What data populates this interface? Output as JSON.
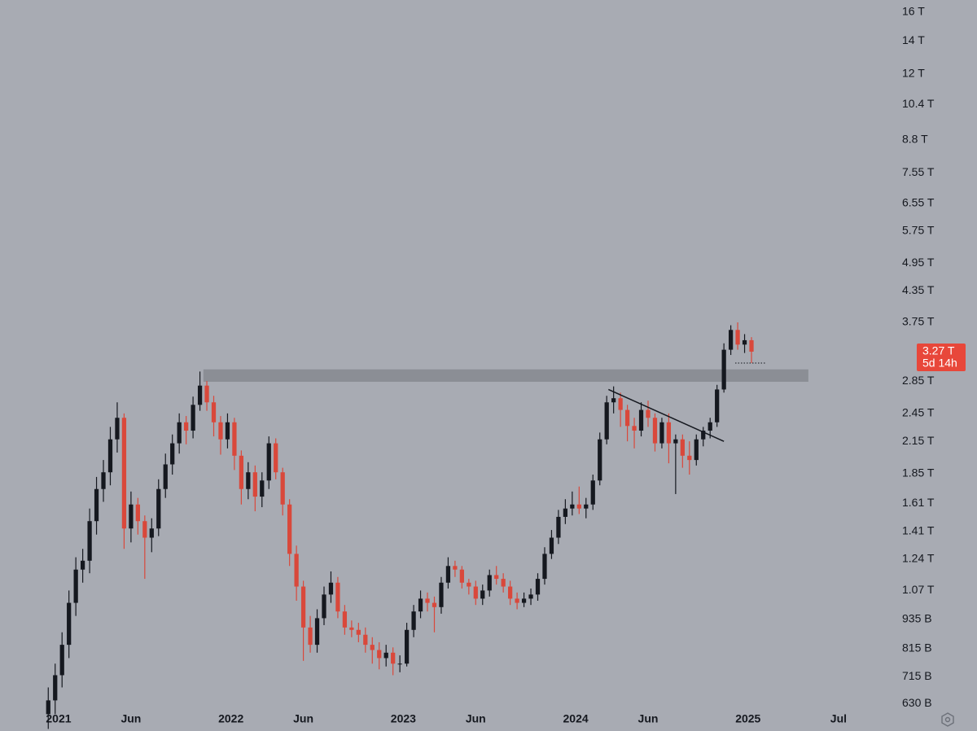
{
  "chart_data": {
    "type": "candlestick",
    "log_scale": true,
    "up_color": "#15181f",
    "down_color": "#d9483b",
    "x": [
      2020.94,
      2020.98,
      2021.02,
      2021.06,
      2021.1,
      2021.14,
      2021.18,
      2021.22,
      2021.26,
      2021.3,
      2021.34,
      2021.38,
      2021.42,
      2021.46,
      2021.5,
      2021.54,
      2021.58,
      2021.62,
      2021.66,
      2021.7,
      2021.74,
      2021.78,
      2021.82,
      2021.86,
      2021.9,
      2021.94,
      2021.98,
      2022.02,
      2022.06,
      2022.1,
      2022.14,
      2022.18,
      2022.22,
      2022.26,
      2022.3,
      2022.34,
      2022.38,
      2022.42,
      2022.46,
      2022.5,
      2022.54,
      2022.58,
      2022.62,
      2022.66,
      2022.7,
      2022.74,
      2022.78,
      2022.82,
      2022.86,
      2022.9,
      2022.94,
      2022.98,
      2023.02,
      2023.06,
      2023.1,
      2023.14,
      2023.18,
      2023.22,
      2023.26,
      2023.3,
      2023.34,
      2023.38,
      2023.42,
      2023.46,
      2023.5,
      2023.54,
      2023.58,
      2023.62,
      2023.66,
      2023.7,
      2023.74,
      2023.78,
      2023.82,
      2023.86,
      2023.9,
      2023.94,
      2023.98,
      2024.02,
      2024.06,
      2024.1,
      2024.14,
      2024.18,
      2024.22,
      2024.26,
      2024.3,
      2024.34,
      2024.38,
      2024.42,
      2024.46,
      2024.5,
      2024.54,
      2024.58,
      2024.62,
      2024.66,
      2024.7,
      2024.74,
      2024.78,
      2024.82,
      2024.86,
      2024.9,
      2024.94,
      2024.98,
      2025.02
    ],
    "open": [
      0.6,
      0.64,
      0.72,
      0.83,
      1.01,
      1.18,
      1.23,
      1.48,
      1.72,
      1.86,
      2.17,
      2.4,
      1.43,
      1.6,
      1.48,
      1.37,
      1.43,
      1.72,
      1.93,
      2.13,
      2.35,
      2.26,
      2.55,
      2.79,
      2.58,
      2.35,
      2.17,
      2.35,
      2.01,
      1.72,
      1.86,
      1.66,
      1.79,
      2.13,
      1.86,
      1.6,
      1.27,
      1.09,
      0.9,
      0.83,
      0.94,
      1.05,
      1.11,
      0.97,
      0.9,
      0.89,
      0.87,
      0.83,
      0.81,
      0.78,
      0.8,
      0.76,
      0.76,
      0.89,
      0.97,
      1.03,
      1.01,
      0.99,
      1.11,
      1.2,
      1.18,
      1.11,
      1.09,
      1.03,
      1.07,
      1.15,
      1.13,
      1.09,
      1.03,
      1.01,
      1.03,
      1.05,
      1.13,
      1.27,
      1.37,
      1.51,
      1.57,
      1.6,
      1.57,
      1.6,
      1.79,
      2.17,
      2.58,
      2.63,
      2.49,
      2.31,
      2.26,
      2.49,
      2.4,
      2.13,
      2.35,
      2.13,
      2.17,
      2.01,
      1.97,
      2.17,
      2.26,
      2.35,
      2.74,
      3.3,
      3.62,
      3.38,
      3.45
    ],
    "high": [
      0.68,
      0.76,
      0.88,
      1.07,
      1.25,
      1.3,
      1.57,
      1.82,
      1.97,
      2.3,
      2.58,
      2.45,
      1.7,
      1.65,
      1.52,
      1.5,
      1.8,
      2.03,
      2.22,
      2.45,
      2.42,
      2.65,
      2.98,
      2.85,
      2.66,
      2.42,
      2.45,
      2.4,
      2.06,
      1.95,
      1.92,
      1.86,
      2.2,
      2.18,
      1.9,
      1.64,
      1.32,
      1.12,
      0.95,
      0.98,
      1.09,
      1.17,
      1.14,
      1.0,
      0.93,
      0.92,
      0.9,
      0.86,
      0.84,
      0.83,
      0.82,
      0.79,
      0.92,
      1.0,
      1.07,
      1.06,
      1.04,
      1.14,
      1.25,
      1.23,
      1.2,
      1.13,
      1.12,
      1.1,
      1.18,
      1.2,
      1.16,
      1.12,
      1.06,
      1.06,
      1.08,
      1.16,
      1.31,
      1.42,
      1.56,
      1.64,
      1.7,
      1.74,
      1.65,
      1.84,
      2.24,
      2.66,
      2.78,
      2.7,
      2.55,
      2.4,
      2.58,
      2.6,
      2.45,
      2.4,
      2.45,
      2.22,
      2.22,
      2.15,
      2.22,
      2.3,
      2.4,
      2.8,
      3.4,
      3.7,
      3.75,
      3.55,
      3.5
    ],
    "low": [
      0.56,
      0.6,
      0.68,
      0.78,
      0.95,
      1.11,
      1.16,
      1.39,
      1.62,
      1.75,
      2.04,
      1.3,
      1.34,
      1.39,
      1.13,
      1.28,
      1.38,
      1.65,
      1.84,
      2.03,
      2.12,
      2.18,
      2.48,
      2.48,
      2.2,
      2.02,
      2.08,
      1.88,
      1.6,
      1.64,
      1.55,
      1.58,
      1.72,
      1.8,
      1.52,
      1.2,
      1.02,
      0.77,
      0.8,
      0.8,
      0.91,
      1.01,
      0.94,
      0.87,
      0.86,
      0.84,
      0.8,
      0.76,
      0.74,
      0.75,
      0.72,
      0.73,
      0.75,
      0.86,
      0.94,
      0.97,
      0.88,
      0.96,
      1.08,
      1.14,
      1.08,
      1.05,
      1.0,
      1.0,
      1.04,
      1.1,
      1.06,
      1.0,
      0.98,
      0.99,
      1.0,
      1.02,
      1.1,
      1.24,
      1.33,
      1.46,
      1.52,
      1.53,
      1.5,
      1.56,
      1.75,
      2.12,
      2.45,
      2.3,
      2.15,
      2.08,
      2.2,
      2.3,
      2.05,
      2.08,
      1.94,
      1.68,
      1.9,
      1.84,
      1.92,
      2.1,
      2.18,
      2.3,
      2.7,
      3.22,
      3.3,
      3.25,
      3.1
    ],
    "close": [
      0.64,
      0.72,
      0.83,
      1.01,
      1.18,
      1.23,
      1.48,
      1.72,
      1.86,
      2.17,
      2.4,
      1.43,
      1.6,
      1.48,
      1.37,
      1.43,
      1.72,
      1.93,
      2.13,
      2.35,
      2.26,
      2.55,
      2.79,
      2.58,
      2.35,
      2.17,
      2.35,
      2.01,
      1.72,
      1.86,
      1.66,
      1.79,
      2.13,
      1.86,
      1.6,
      1.27,
      1.09,
      0.9,
      0.83,
      0.94,
      1.05,
      1.11,
      0.97,
      0.9,
      0.89,
      0.87,
      0.83,
      0.81,
      0.78,
      0.8,
      0.76,
      0.76,
      0.89,
      0.97,
      1.03,
      1.01,
      0.99,
      1.11,
      1.2,
      1.18,
      1.11,
      1.09,
      1.03,
      1.07,
      1.15,
      1.13,
      1.09,
      1.03,
      1.01,
      1.03,
      1.05,
      1.13,
      1.27,
      1.37,
      1.51,
      1.57,
      1.6,
      1.57,
      1.6,
      1.79,
      2.17,
      2.58,
      2.63,
      2.49,
      2.31,
      2.26,
      2.49,
      2.4,
      2.13,
      2.35,
      2.13,
      2.17,
      2.01,
      1.97,
      2.17,
      2.26,
      2.35,
      2.74,
      3.3,
      3.62,
      3.38,
      3.45,
      3.27
    ],
    "xlim": [
      2020.66,
      2025.856
    ],
    "xticks": [
      2021,
      {
        "value": 2021.42,
        "label": "Jun"
      },
      2022,
      {
        "value": 2022.42,
        "label": "Jun"
      },
      2023,
      {
        "value": 2023.42,
        "label": "Jun"
      },
      2024,
      {
        "value": 2024.42,
        "label": "Jun"
      },
      2025,
      {
        "value": 2025.525,
        "label": "Jul"
      }
    ],
    "ylim": [
      0.617,
      16.94
    ],
    "yticks": [
      {
        "value": 16,
        "label": "16 T"
      },
      {
        "value": 14,
        "label": "14 T"
      },
      {
        "value": 12,
        "label": "12 T"
      },
      {
        "value": 10.4,
        "label": "10.4 T"
      },
      {
        "value": 8.8,
        "label": "8.8 T"
      },
      {
        "value": 7.55,
        "label": "7.55 T"
      },
      {
        "value": 6.55,
        "label": "6.55 T"
      },
      {
        "value": 5.75,
        "label": "5.75 T"
      },
      {
        "value": 4.95,
        "label": "4.95 T"
      },
      {
        "value": 4.35,
        "label": "4.35 T"
      },
      {
        "value": 3.75,
        "label": "3.75 T"
      },
      {
        "value": 2.85,
        "label": "2.85 T"
      },
      {
        "value": 2.45,
        "label": "2.45 T"
      },
      {
        "value": 2.15,
        "label": "2.15 T"
      },
      {
        "value": 1.85,
        "label": "1.85 T"
      },
      {
        "value": 1.61,
        "label": "1.61 T"
      },
      {
        "value": 1.41,
        "label": "1.41 T"
      },
      {
        "value": 1.24,
        "label": "1.24 T"
      },
      {
        "value": 1.07,
        "label": "1.07 T"
      },
      {
        "value": 0.935,
        "label": "935 B"
      },
      {
        "value": 0.815,
        "label": "815 B"
      },
      {
        "value": 0.715,
        "label": "715 B"
      },
      {
        "value": 0.63,
        "label": "630 B"
      }
    ],
    "zone": {
      "x": [
        2021.84,
        2025.35
      ],
      "y": [
        2.84,
        3.01
      ],
      "color": "#8b8e95"
    },
    "trendline": {
      "x": [
        2024.19,
        2024.86
      ],
      "y": [
        2.74,
        2.15
      ],
      "color": "#15181f"
    },
    "last_price": {
      "value": 3.27,
      "label": "3.27 T",
      "color": "#e8473a"
    },
    "countdown": "5d 14h"
  }
}
